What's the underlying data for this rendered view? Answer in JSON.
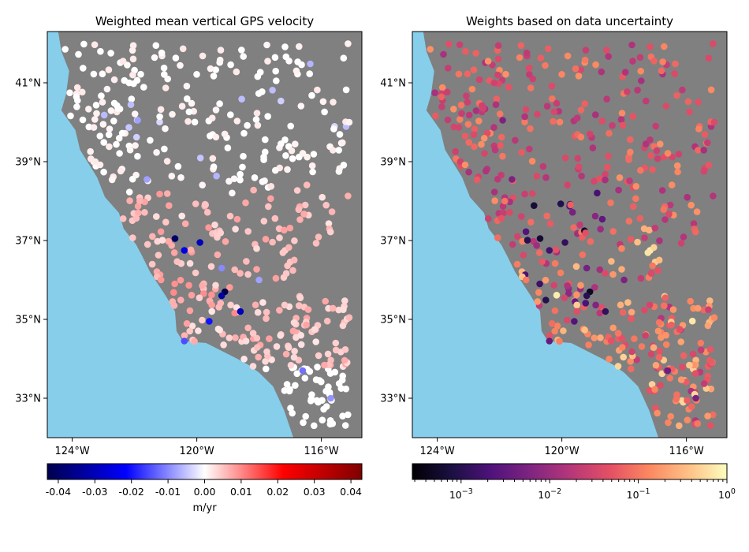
{
  "panels": [
    {
      "title": "Weighted mean vertical GPS velocity",
      "colorbar": {
        "ticks": [
          "-0.04",
          "-0.03",
          "-0.02",
          "-0.01",
          "0.00",
          "0.01",
          "0.02",
          "0.03",
          "0.04"
        ],
        "tick_values": [
          -0.04,
          -0.03,
          -0.02,
          -0.01,
          0,
          0.01,
          0.02,
          0.03,
          0.04
        ],
        "range": [
          -0.043,
          0.043
        ],
        "label": "m/yr",
        "colormap": "seismic"
      },
      "special_points": [
        {
          "lon": -120.7,
          "lat": 37.05,
          "v": -0.04
        },
        {
          "lon": -120.4,
          "lat": 36.75,
          "v": -0.025
        },
        {
          "lon": -119.9,
          "lat": 36.95,
          "v": -0.03
        },
        {
          "lon": -119.1,
          "lat": 35.7,
          "v": -0.043
        },
        {
          "lon": -119.2,
          "lat": 35.6,
          "v": -0.033
        },
        {
          "lon": -118.6,
          "lat": 35.2,
          "v": -0.03
        },
        {
          "lon": -119.6,
          "lat": 34.95,
          "v": -0.02
        },
        {
          "lon": -120.4,
          "lat": 34.45,
          "v": -0.015
        },
        {
          "lon": -119.2,
          "lat": 36.3,
          "v": -0.01
        },
        {
          "lon": -118.0,
          "lat": 36.0,
          "v": -0.008
        },
        {
          "lon": -121.6,
          "lat": 38.55,
          "v": -0.008
        },
        {
          "lon": -121.9,
          "lat": 40.05,
          "v": -0.008
        },
        {
          "lon": -116.6,
          "lat": 33.7,
          "v": -0.012
        },
        {
          "lon": -115.7,
          "lat": 33.0,
          "v": -0.009
        }
      ]
    },
    {
      "title": "Weights based on data uncertainty",
      "colorbar": {
        "ticks": [
          "10−3",
          "10−2",
          "10−1",
          "100"
        ],
        "tick_labels": [
          {
            "base": "10",
            "exp": "−3"
          },
          {
            "base": "10",
            "exp": "−2"
          },
          {
            "base": "10",
            "exp": "−1"
          },
          {
            "base": "10",
            "exp": "0"
          }
        ],
        "log_range": [
          -3.55,
          0
        ],
        "colormap": "magma",
        "scale": "log"
      }
    }
  ],
  "axes": {
    "lon_ticks": [
      "124°W",
      "120°W",
      "116°W"
    ],
    "lat_ticks": [
      "33°N",
      "35°N",
      "37°N",
      "39°N",
      "41°N"
    ],
    "lon_tick_values": [
      -124,
      -120,
      -116
    ],
    "lat_tick_values": [
      33,
      35,
      37,
      39,
      41
    ],
    "lon_range": [
      -124.8,
      -114.7
    ],
    "lat_range": [
      32.0,
      42.3
    ]
  },
  "colors": {
    "ocean": "#87ceeb",
    "land": "#808080"
  },
  "stations": {
    "count": 520,
    "seed": 17
  }
}
